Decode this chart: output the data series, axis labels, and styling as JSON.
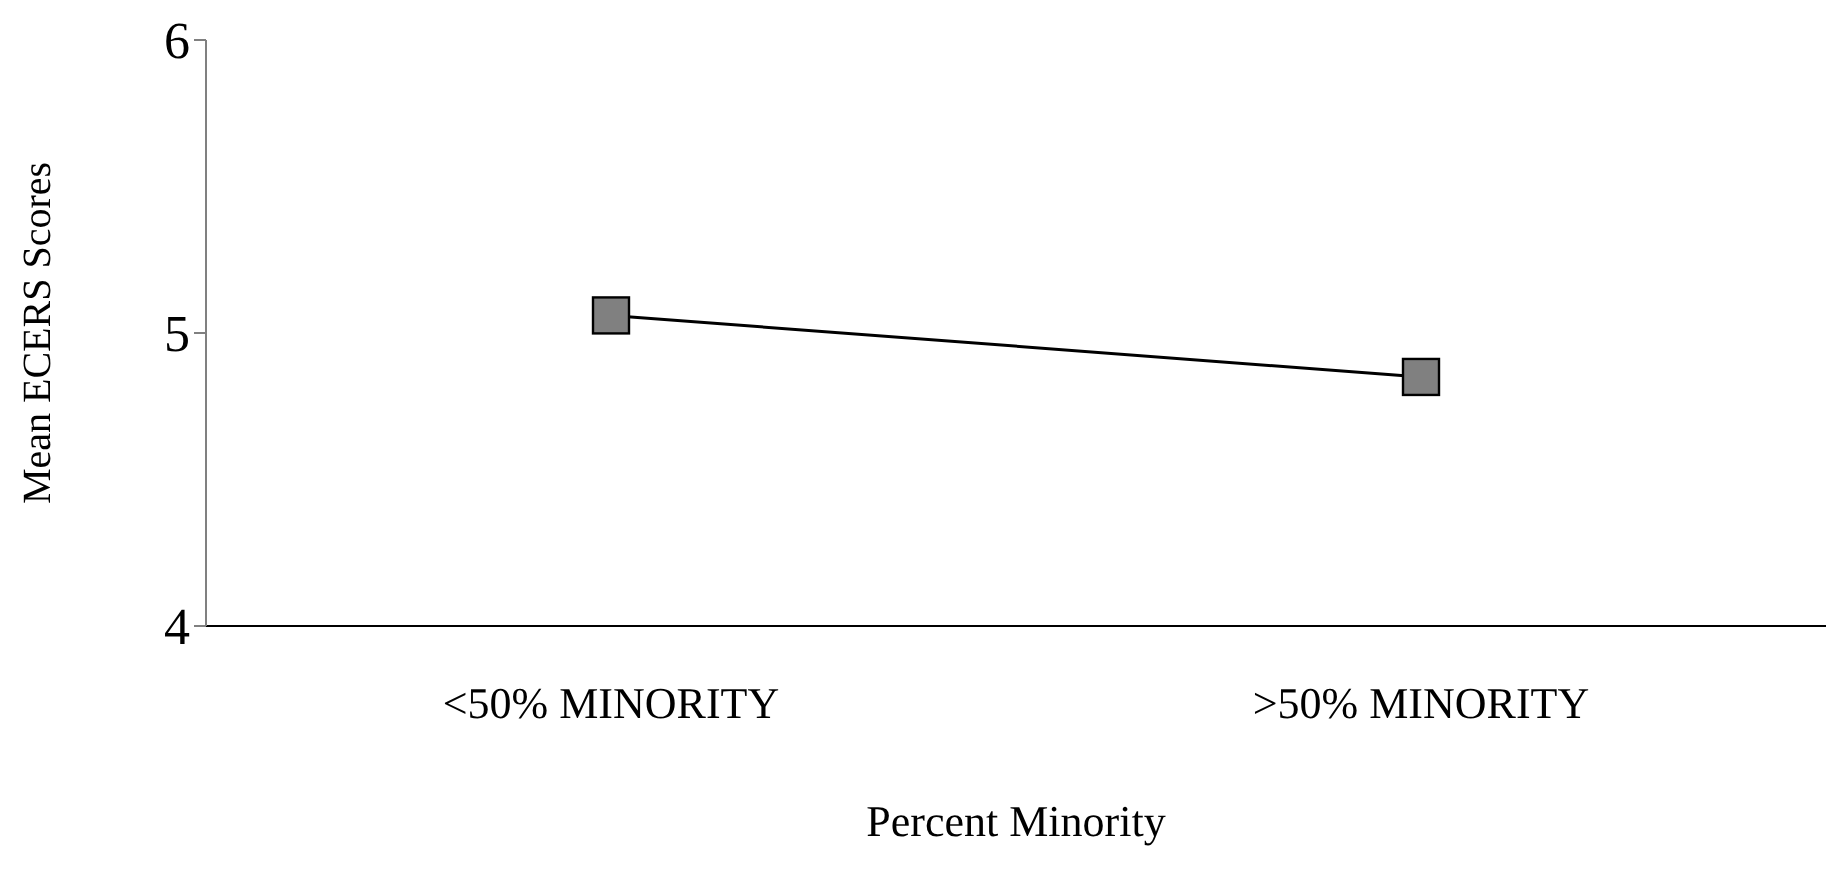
{
  "chart_data": {
    "type": "line",
    "xlabel": "Percent Minority",
    "ylabel": "Mean ECERS Scores",
    "categories": [
      "<50% MINORITY",
      ">50% MINORITY"
    ],
    "series": [
      {
        "color": "#808080",
        "values": [
          5.06,
          4.85
        ]
      }
    ],
    "ylim": [
      4,
      6
    ],
    "yticks": [
      4,
      5,
      6
    ],
    "marker": "square",
    "line_style": "solid",
    "grid": false,
    "legend": false
  }
}
